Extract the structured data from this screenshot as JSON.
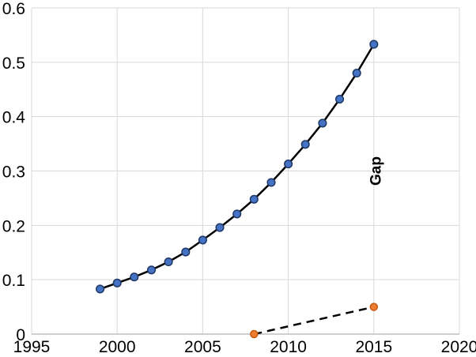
{
  "chart_data": {
    "type": "line",
    "title": "",
    "xlabel": "",
    "ylabel": "",
    "xlim": [
      1995,
      2020
    ],
    "ylim": [
      0,
      0.6
    ],
    "grid": true,
    "legend": "none",
    "grid_color": "#d9d9d9",
    "axis_line_color": "#bfbfbf",
    "background_color": "#ffffff",
    "x_ticks": [
      1995,
      2000,
      2005,
      2010,
      2015,
      2020
    ],
    "x_tick_labels": [
      "1995",
      "2000",
      "2005",
      "2010",
      "2015",
      "2020"
    ],
    "y_ticks": [
      0,
      0.1,
      0.2,
      0.3,
      0.4,
      0.5,
      0.6
    ],
    "y_tick_labels": [
      "0",
      "0.1",
      "0.2",
      "0.3",
      "0.4",
      "0.5",
      "0.6"
    ],
    "series": [
      {
        "name": "main-series",
        "line_style": "solid",
        "line_color": "#000000",
        "line_width": 2.5,
        "marker": "circle",
        "marker_fill": "#4472c4",
        "marker_stroke": "#1f3864",
        "marker_radius": 4.8,
        "x": [
          1999,
          2000,
          2001,
          2002,
          2003,
          2004,
          2005,
          2006,
          2007,
          2008,
          2009,
          2010,
          2011,
          2012,
          2013,
          2014,
          2015
        ],
        "values": [
          0.083,
          0.094,
          0.105,
          0.118,
          0.133,
          0.151,
          0.173,
          0.196,
          0.221,
          0.248,
          0.279,
          0.313,
          0.349,
          0.388,
          0.432,
          0.48,
          0.533
        ]
      },
      {
        "name": "gap-series",
        "line_style": "dashed",
        "line_color": "#000000",
        "line_width": 2.5,
        "dash_pattern": "10 7",
        "marker": "circle",
        "marker_fill": "#ed7d31",
        "marker_stroke": "#c55a11",
        "marker_radius": 4.5,
        "x": [
          2008,
          2015
        ],
        "values": [
          0,
          0.05
        ]
      }
    ],
    "annotations": [
      {
        "text": "Gap",
        "x": 2015.4,
        "y": 0.3,
        "rotation": -90,
        "bold": true,
        "color": "#000000"
      }
    ]
  }
}
